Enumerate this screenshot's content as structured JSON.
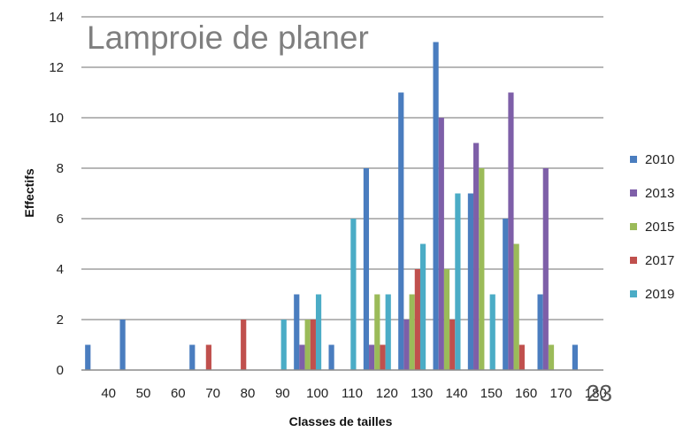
{
  "chart_data": {
    "type": "bar",
    "title": "Lamproie de planer",
    "xlabel": "Classes de tailles",
    "ylabel": "Effectifs",
    "ylim": [
      0,
      14
    ],
    "yticks": [
      0,
      2,
      4,
      6,
      8,
      10,
      12,
      14
    ],
    "grid": true,
    "legend_position": "right",
    "categories": [
      "40",
      "50",
      "60",
      "70",
      "80",
      "90",
      "100",
      "110",
      "120",
      "130",
      "140",
      "150",
      "160",
      "170",
      "180"
    ],
    "series": [
      {
        "name": "2010",
        "color": "#4a7dbf",
        "values": [
          1,
          2,
          0,
          1,
          0,
          0,
          3,
          1,
          8,
          11,
          13,
          7,
          6,
          3,
          1
        ]
      },
      {
        "name": "2013",
        "color": "#7e5fa8",
        "values": [
          0,
          0,
          0,
          0,
          0,
          0,
          1,
          0,
          1,
          2,
          10,
          9,
          11,
          8,
          0
        ]
      },
      {
        "name": "2015",
        "color": "#9bbb59",
        "values": [
          0,
          0,
          0,
          0,
          0,
          0,
          2,
          0,
          3,
          3,
          4,
          8,
          5,
          1,
          0
        ]
      },
      {
        "name": "2017",
        "color": "#c0504d",
        "values": [
          0,
          0,
          0,
          1,
          2,
          0,
          2,
          0,
          1,
          4,
          2,
          0,
          1,
          0,
          0
        ]
      },
      {
        "name": "2019",
        "color": "#4bacc6",
        "values": [
          0,
          0,
          0,
          0,
          0,
          2,
          3,
          6,
          3,
          5,
          7,
          3,
          0,
          0,
          0
        ]
      }
    ]
  },
  "page_number": "23"
}
